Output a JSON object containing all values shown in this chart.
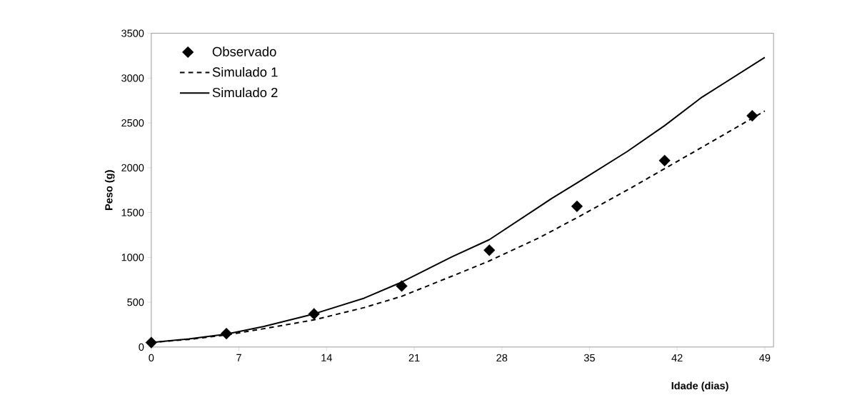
{
  "chart_data": {
    "type": "line",
    "xlabel": "Idade (dias)",
    "ylabel": "Peso (g)",
    "xlim": [
      0,
      49.7
    ],
    "ylim": [
      0,
      3500
    ],
    "xticks": [
      0,
      7,
      14,
      21,
      28,
      35,
      42,
      49
    ],
    "yticks": [
      0,
      500,
      1000,
      1500,
      2000,
      2500,
      3000,
      3500
    ],
    "grid": false,
    "legend": "top left",
    "series": [
      {
        "name": "Observado",
        "type": "scatter",
        "marker": "diamond",
        "color": "#000000",
        "x": [
          0,
          6,
          13,
          20,
          27,
          34,
          41,
          48
        ],
        "values": [
          50,
          150,
          370,
          680,
          1080,
          1570,
          2080,
          2580
        ]
      },
      {
        "name": "Simulado 1",
        "line_style": "dashed",
        "color": "#000000",
        "x": [
          0,
          3,
          6,
          9,
          13,
          17,
          20,
          24,
          27,
          31,
          34,
          38,
          41,
          45,
          49
        ],
        "values": [
          50,
          85,
          135,
          205,
          303,
          440,
          566,
          790,
          961,
          1220,
          1443,
          1750,
          1990,
          2310,
          2633
        ]
      },
      {
        "name": "Simulado 2",
        "line_style": "solid",
        "color": "#000000",
        "x": [
          0,
          3,
          6,
          9,
          13,
          17,
          20,
          24,
          27,
          32,
          34,
          38,
          41,
          44,
          49
        ],
        "values": [
          50,
          90,
          145,
          230,
          370,
          545,
          724,
          1005,
          1198,
          1659,
          1830,
          2180,
          2470,
          2789,
          3230
        ]
      }
    ]
  }
}
